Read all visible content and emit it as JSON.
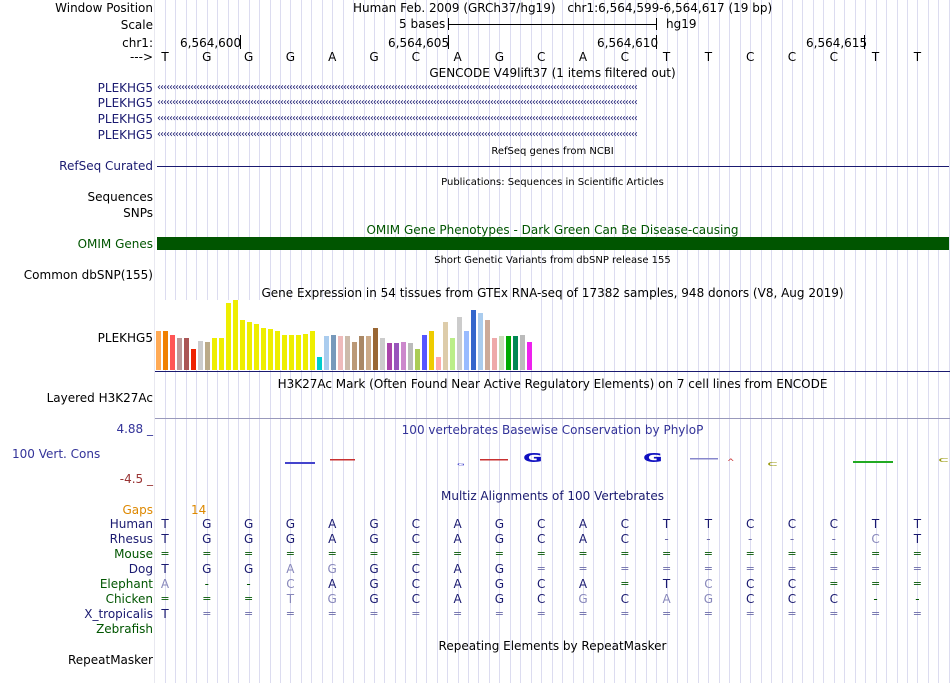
{
  "header": {
    "window_position_label": "Window Position",
    "assembly": "Human Feb. 2009 (GRCh37/hg19)",
    "position": "chr1:6,564,599-6,564,617 (19 bp)",
    "scale_label": "Scale",
    "scale_text": "5 bases",
    "scale_db": "hg19",
    "chr_label": "chr1:",
    "coords": [
      "6,564,600",
      "6,564,605",
      "6,564,610",
      "6,564,615"
    ],
    "strand_label": "--->"
  },
  "sequence": [
    "T",
    "G",
    "G",
    "G",
    "A",
    "G",
    "C",
    "A",
    "G",
    "C",
    "A",
    "C",
    "T",
    "T",
    "C",
    "C",
    "C",
    "T",
    "T"
  ],
  "gencode": {
    "title": "GENCODE V49lift37 (1 items filtered out)",
    "genes": [
      "PLEKHG5",
      "PLEKHG5",
      "PLEKHG5",
      "PLEKHG5"
    ]
  },
  "refseq": {
    "title": "RefSeq genes from NCBI",
    "label": "RefSeq Curated"
  },
  "publications": {
    "title": "Publications: Sequences in Scientific Articles",
    "labels": [
      "Sequences",
      "SNPs"
    ]
  },
  "omim": {
    "title": "OMIM Gene Phenotypes - Dark Green Can Be Disease-causing",
    "label": "OMIM Genes",
    "color": "#005500"
  },
  "dbsnp": {
    "title": "Short Genetic Variants from dbSNP release 155",
    "label": "Common dbSNP(155)"
  },
  "gtex": {
    "title": "Gene Expression in 54 tissues from GTEx RNA-seq of 17382 samples, 948 donors (V8, Aug 2019)",
    "label": "PLEKHG5",
    "values": [
      0.55,
      0.55,
      0.5,
      0.45,
      0.45,
      0.3,
      0.42,
      0.4,
      0.45,
      0.45,
      0.95,
      1.0,
      0.72,
      0.68,
      0.65,
      0.6,
      0.58,
      0.55,
      0.5,
      0.5,
      0.5,
      0.52,
      0.55,
      0.18,
      0.48,
      0.5,
      0.48,
      0.48,
      0.4,
      0.48,
      0.48,
      0.6,
      0.45,
      0.38,
      0.38,
      0.4,
      0.38,
      0.3,
      0.5,
      0.55,
      0.18,
      0.68,
      0.45,
      0.75,
      0.55,
      0.85,
      0.82,
      0.72,
      0.45,
      0.48,
      0.48,
      0.48,
      0.5,
      0.4
    ],
    "colors": [
      "#FFAA55",
      "#F08000",
      "#FF5555",
      "#BB9999",
      "#AA5555",
      "#EE2200",
      "#CCCCCC",
      "#BBAA88",
      "#EEEE00",
      "#EEEE00",
      "#EEEE00",
      "#EEEE00",
      "#EEEE00",
      "#EEEE00",
      "#EEEE00",
      "#EEEE00",
      "#EEEE00",
      "#EEEE00",
      "#EEEE00",
      "#EEEE00",
      "#EEEE00",
      "#EEEE00",
      "#EEEE00",
      "#00CCCC",
      "#AACCEE",
      "#7799BB",
      "#EEBBBB",
      "#CCBBAA",
      "#BB9977",
      "#AA8866",
      "#CCAA88",
      "#996633",
      "#CCCCCC",
      "#AA44AA",
      "#9955BB",
      "#CC88CC",
      "#BBBBBB",
      "#AACC55",
      "#5555FF",
      "#EECC00",
      "#FFAAAA",
      "#DDCCAA",
      "#BBEE88",
      "#CCCCCC",
      "#99BBFF",
      "#3366CC",
      "#AACCEE",
      "#CCAA99",
      "#EEAAAA",
      "#CCDDBB",
      "#00AA00",
      "#008855",
      "#BBBBBB",
      "#EE22EE"
    ]
  },
  "h3k27ac": {
    "title": "H3K27Ac Mark (Often Found Near Active Regulatory Elements) on 7 cell lines from ENCODE",
    "label": "Layered H3K27Ac"
  },
  "conservation": {
    "title": "100 vertebrates Basewise Conservation by PhyloP",
    "label": "100 Vert. Cons",
    "max": "4.88 _",
    "min": "-4.5 _"
  },
  "multiz": {
    "title": "Multiz Alignments of 100 Vertebrates",
    "gaps_label": "Gaps",
    "gaps_value": "14",
    "species": [
      {
        "name": "Human",
        "bases": [
          "T",
          "G",
          "G",
          "G",
          "A",
          "G",
          "C",
          "A",
          "G",
          "C",
          "A",
          "C",
          "T",
          "T",
          "C",
          "C",
          "C",
          "T",
          "T"
        ]
      },
      {
        "name": "Rhesus",
        "bases": [
          "T",
          "G",
          "G",
          "G",
          "A",
          "G",
          "C",
          "A",
          "G",
          "C",
          "A",
          "C",
          "-",
          "-",
          "-",
          "-",
          "-",
          "C",
          "T"
        ]
      },
      {
        "name": "Mouse",
        "bases": [
          "=",
          "=",
          "=",
          "=",
          "=",
          "=",
          "=",
          "=",
          "=",
          "=",
          "=",
          "=",
          "=",
          "=",
          "=",
          "=",
          "=",
          "=",
          "="
        ]
      },
      {
        "name": "Dog",
        "bases": [
          "T",
          "G",
          "G",
          "A",
          "G",
          "G",
          "C",
          "A",
          "G",
          "=",
          "=",
          "=",
          "=",
          "=",
          "=",
          "=",
          "=",
          "=",
          "="
        ]
      },
      {
        "name": "Elephant",
        "bases": [
          "A",
          "-",
          "-",
          "C",
          "A",
          "G",
          "C",
          "A",
          "G",
          "C",
          "A",
          "=",
          "T",
          "C",
          "C",
          "C",
          "=",
          "=",
          "="
        ]
      },
      {
        "name": "Chicken",
        "bases": [
          "=",
          "=",
          "=",
          "T",
          "G",
          "G",
          "C",
          "A",
          "G",
          "C",
          "G",
          "C",
          "A",
          "G",
          "C",
          "C",
          "C",
          "-",
          "-"
        ]
      },
      {
        "name": "X_tropicalis",
        "bases": [
          "T",
          "=",
          "=",
          "=",
          "=",
          "=",
          "=",
          "=",
          "=",
          "=",
          "=",
          "=",
          "=",
          "=",
          "=",
          "=",
          "=",
          "=",
          "="
        ]
      },
      {
        "name": "Zebrafish",
        "bases": [
          "",
          "",
          "",
          "",
          "",
          "",
          "",
          "",
          "",
          "",
          "",
          "",
          "",
          "",
          "",
          "",
          "",
          "",
          ""
        ]
      }
    ]
  },
  "repeatmasker": {
    "title": "Repeating Elements by RepeatMasker",
    "label": "RepeatMasker"
  }
}
